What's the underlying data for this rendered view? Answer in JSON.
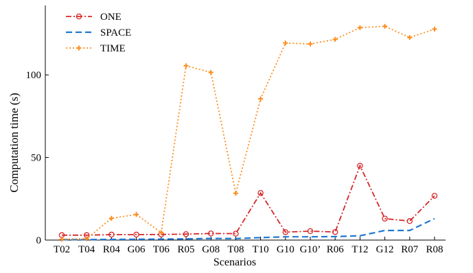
{
  "chart_data": {
    "type": "line",
    "title": "",
    "xlabel": "Scenarios",
    "ylabel": "Computation time (s)",
    "categories": [
      "T02",
      "T04",
      "R04",
      "G06",
      "T06",
      "R05",
      "G08",
      "T08",
      "T10",
      "G10",
      "G10’",
      "R06",
      "T12",
      "G12",
      "R07",
      "R08"
    ],
    "ylim": [
      0,
      142
    ],
    "yticks": [
      0,
      50,
      100
    ],
    "grid": false,
    "legend_position": "top-left",
    "series": [
      {
        "name": "ONE",
        "color": "#d62728",
        "line_style": "dash-dot",
        "marker": "circle",
        "values": [
          3,
          3,
          3.3,
          3.3,
          3.4,
          3.6,
          4,
          3.9,
          28.5,
          4.8,
          5.4,
          4.9,
          45,
          13,
          11.5,
          26.8
        ]
      },
      {
        "name": "SPACE",
        "color": "#1f77d4",
        "line_style": "dashed",
        "marker": "none",
        "values": [
          0.3,
          0.3,
          0.4,
          0.5,
          0.6,
          0.7,
          1,
          0.9,
          1.5,
          2,
          2,
          2.1,
          2.6,
          5.8,
          5.8,
          13
        ]
      },
      {
        "name": "TIME",
        "color": "#ff8c1a",
        "line_style": "dotted",
        "marker": "plus",
        "values": [
          0.5,
          0.8,
          13.2,
          15.5,
          4.5,
          105.5,
          101.5,
          28.3,
          85.5,
          119.3,
          118.7,
          121.5,
          128.6,
          129.4,
          122.6,
          127.7
        ]
      }
    ]
  }
}
